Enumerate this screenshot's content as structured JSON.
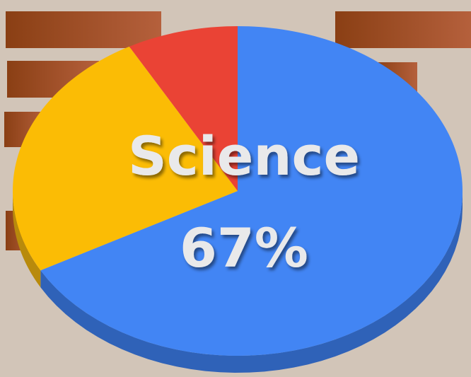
{
  "chart_data": {
    "type": "pie",
    "categories": [
      "Science",
      null,
      null
    ],
    "values": [
      67,
      25,
      8
    ],
    "value_labels": [
      "67%",
      null,
      null
    ],
    "colors": [
      "#4285f4",
      "#fbbc05",
      "#ea4335"
    ],
    "side_colors": [
      "#2f62b8",
      "#b88a0c",
      "#a8332a"
    ]
  }
}
